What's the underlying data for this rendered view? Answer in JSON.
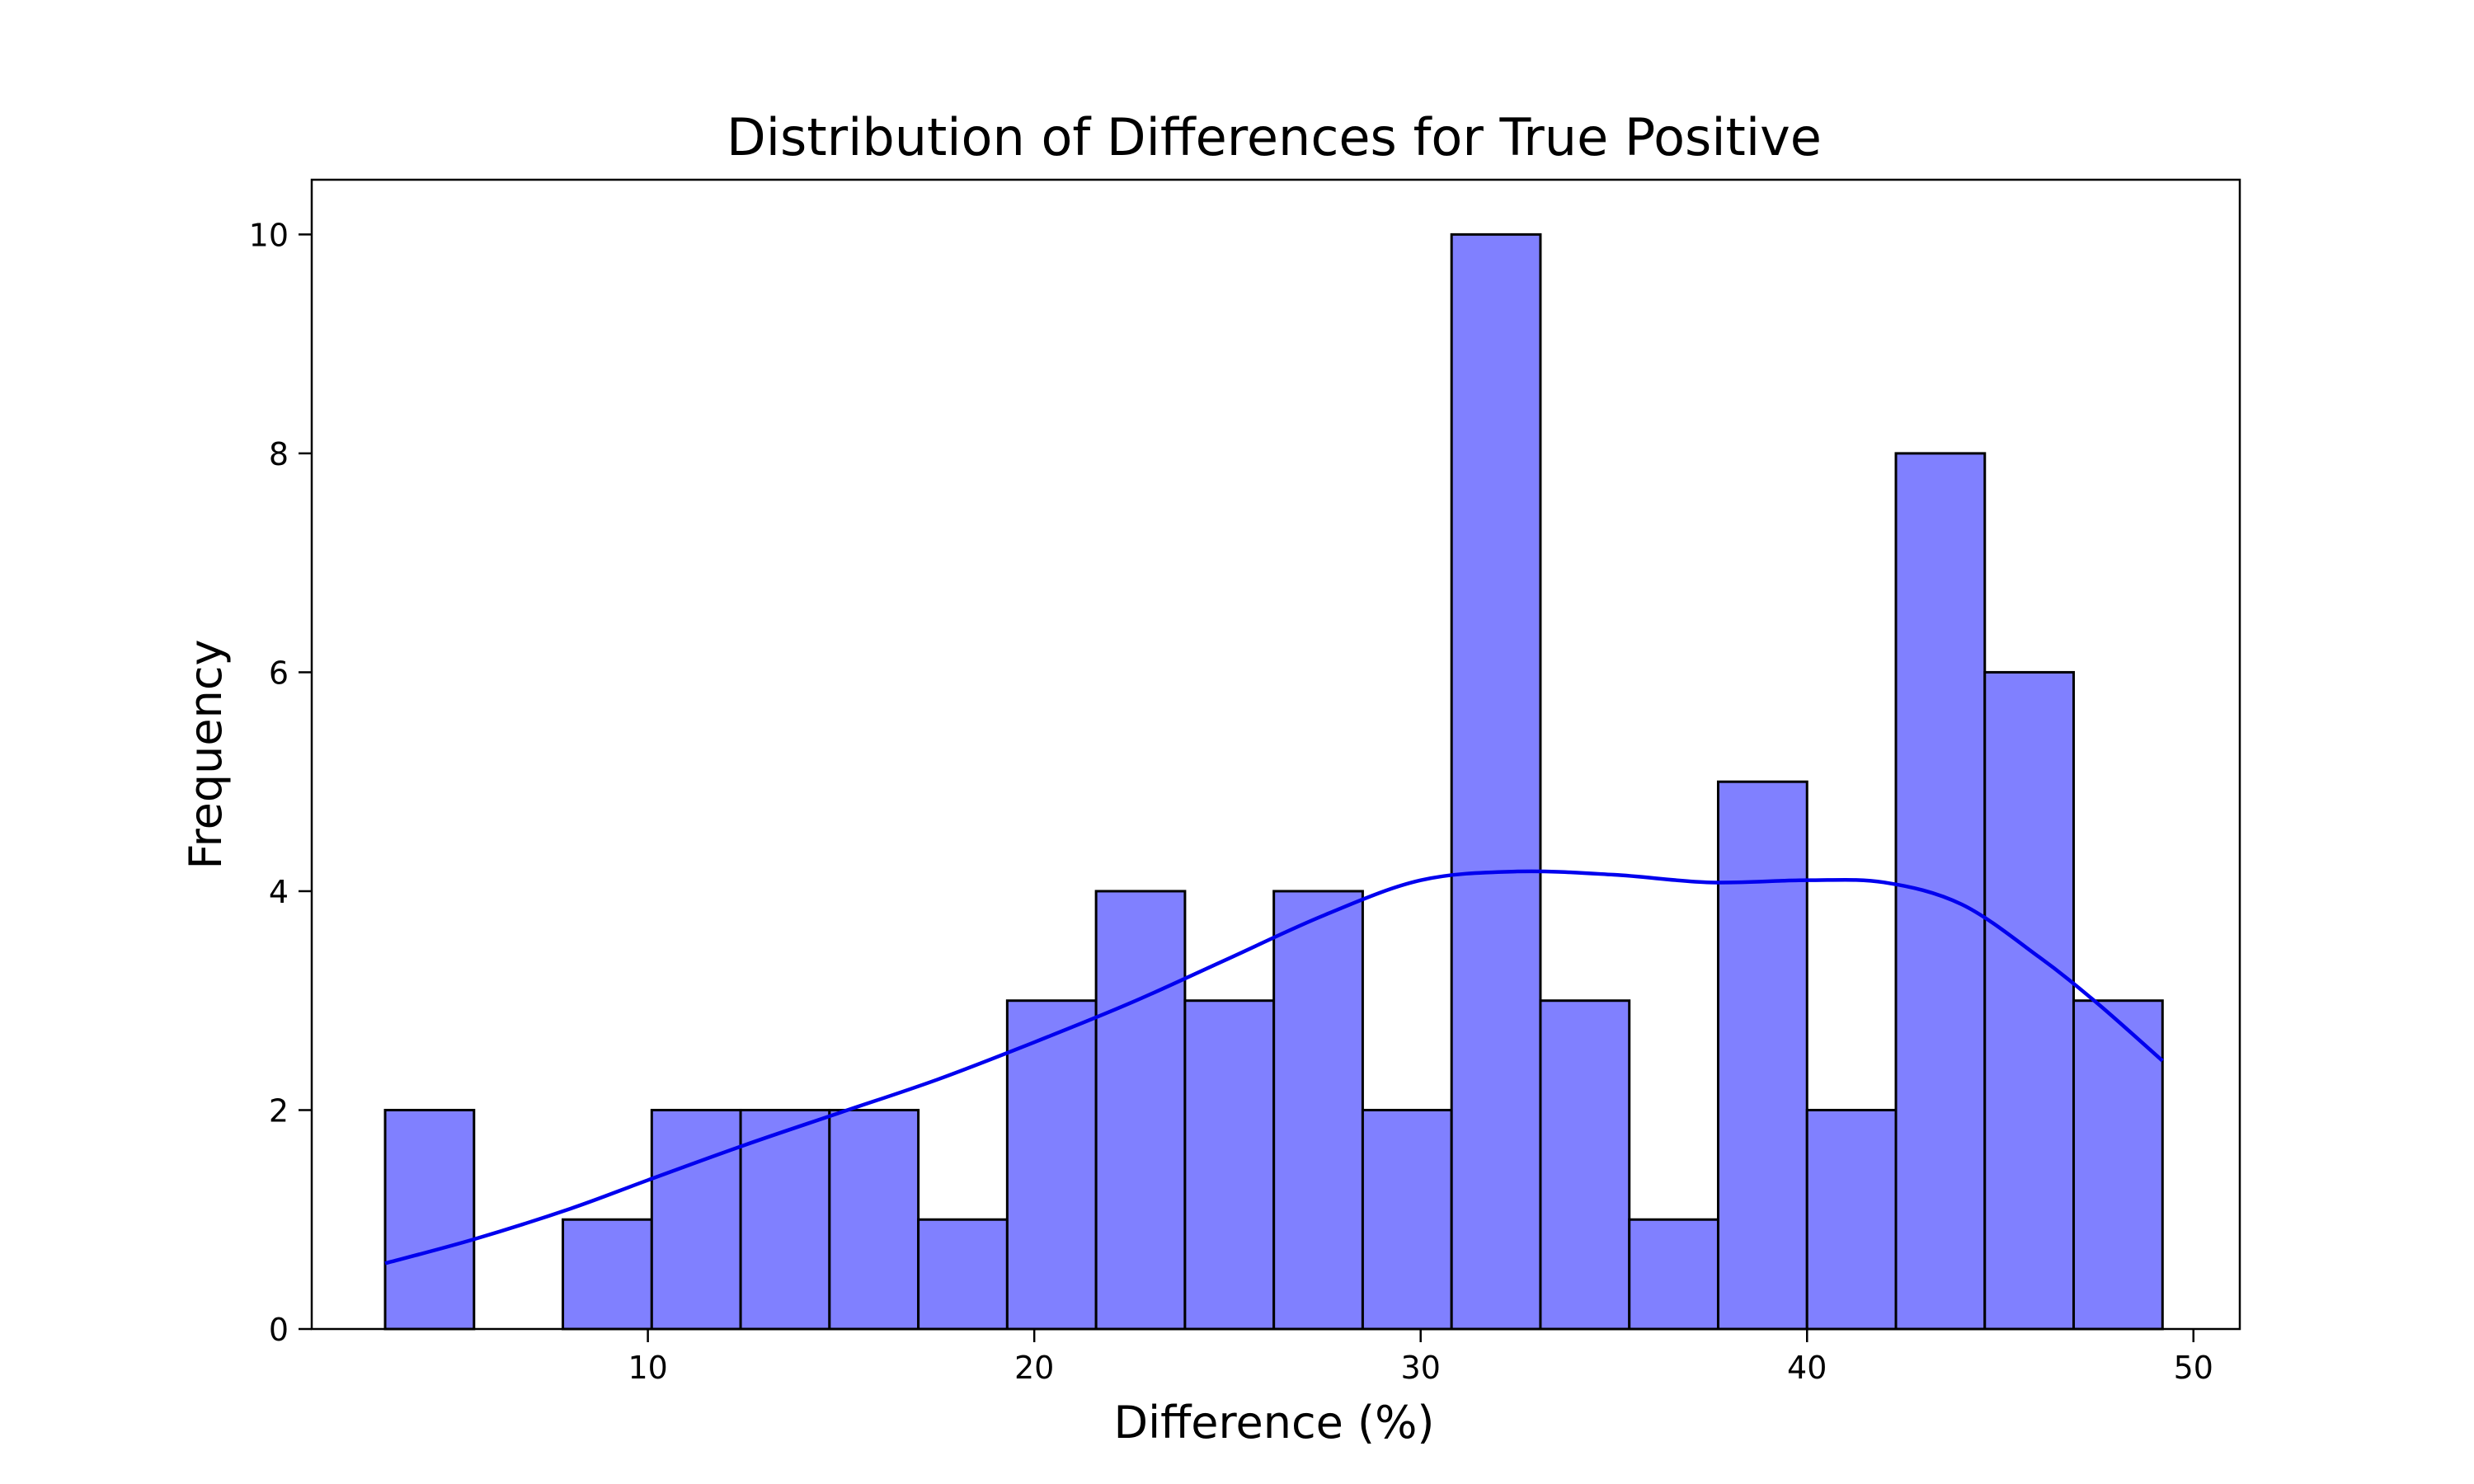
{
  "chart_data": {
    "type": "bar",
    "title": "Distribution of Differences for True Positive",
    "xlabel": "Difference (%)",
    "ylabel": "Frequency",
    "xlim": [
      1.3,
      51.2
    ],
    "ylim": [
      0,
      10.5
    ],
    "xticks": [
      10,
      20,
      30,
      40,
      50
    ],
    "yticks": [
      0,
      2,
      4,
      6,
      8,
      10
    ],
    "grid": false,
    "bins": [
      {
        "x0": 3.2,
        "x1": 5.5,
        "value": 2
      },
      {
        "x0": 5.5,
        "x1": 7.8,
        "value": 0
      },
      {
        "x0": 7.8,
        "x1": 10.1,
        "value": 1
      },
      {
        "x0": 10.1,
        "x1": 12.4,
        "value": 2
      },
      {
        "x0": 12.4,
        "x1": 14.7,
        "value": 2
      },
      {
        "x0": 14.7,
        "x1": 17.0,
        "value": 2
      },
      {
        "x0": 17.0,
        "x1": 19.3,
        "value": 1
      },
      {
        "x0": 19.3,
        "x1": 21.6,
        "value": 3
      },
      {
        "x0": 21.6,
        "x1": 23.9,
        "value": 4
      },
      {
        "x0": 23.9,
        "x1": 26.2,
        "value": 3
      },
      {
        "x0": 26.2,
        "x1": 28.5,
        "value": 4
      },
      {
        "x0": 28.5,
        "x1": 30.8,
        "value": 2
      },
      {
        "x0": 30.8,
        "x1": 33.1,
        "value": 10
      },
      {
        "x0": 33.1,
        "x1": 35.4,
        "value": 3
      },
      {
        "x0": 35.4,
        "x1": 37.7,
        "value": 1
      },
      {
        "x0": 37.7,
        "x1": 40.0,
        "value": 5
      },
      {
        "x0": 40.0,
        "x1": 42.3,
        "value": 2
      },
      {
        "x0": 42.3,
        "x1": 44.6,
        "value": 8
      },
      {
        "x0": 44.6,
        "x1": 46.9,
        "value": 6
      },
      {
        "x0": 46.9,
        "x1": 49.2,
        "value": 3
      }
    ],
    "kde": {
      "x": [
        3.2,
        5.5,
        8,
        10,
        12.5,
        15,
        17.5,
        20,
        22.5,
        25,
        27.5,
        30,
        32.5,
        35,
        37.5,
        40,
        42,
        44,
        46,
        47.5,
        49.2
      ],
      "y": [
        0.6,
        0.82,
        1.1,
        1.36,
        1.68,
        1.98,
        2.28,
        2.62,
        2.98,
        3.38,
        3.78,
        4.1,
        4.18,
        4.15,
        4.08,
        4.1,
        4.08,
        3.88,
        3.4,
        2.98,
        2.45
      ]
    },
    "colors": {
      "bar_fill": "#8080ff",
      "bar_edge": "#000000",
      "kde_line": "#0000ee"
    }
  }
}
